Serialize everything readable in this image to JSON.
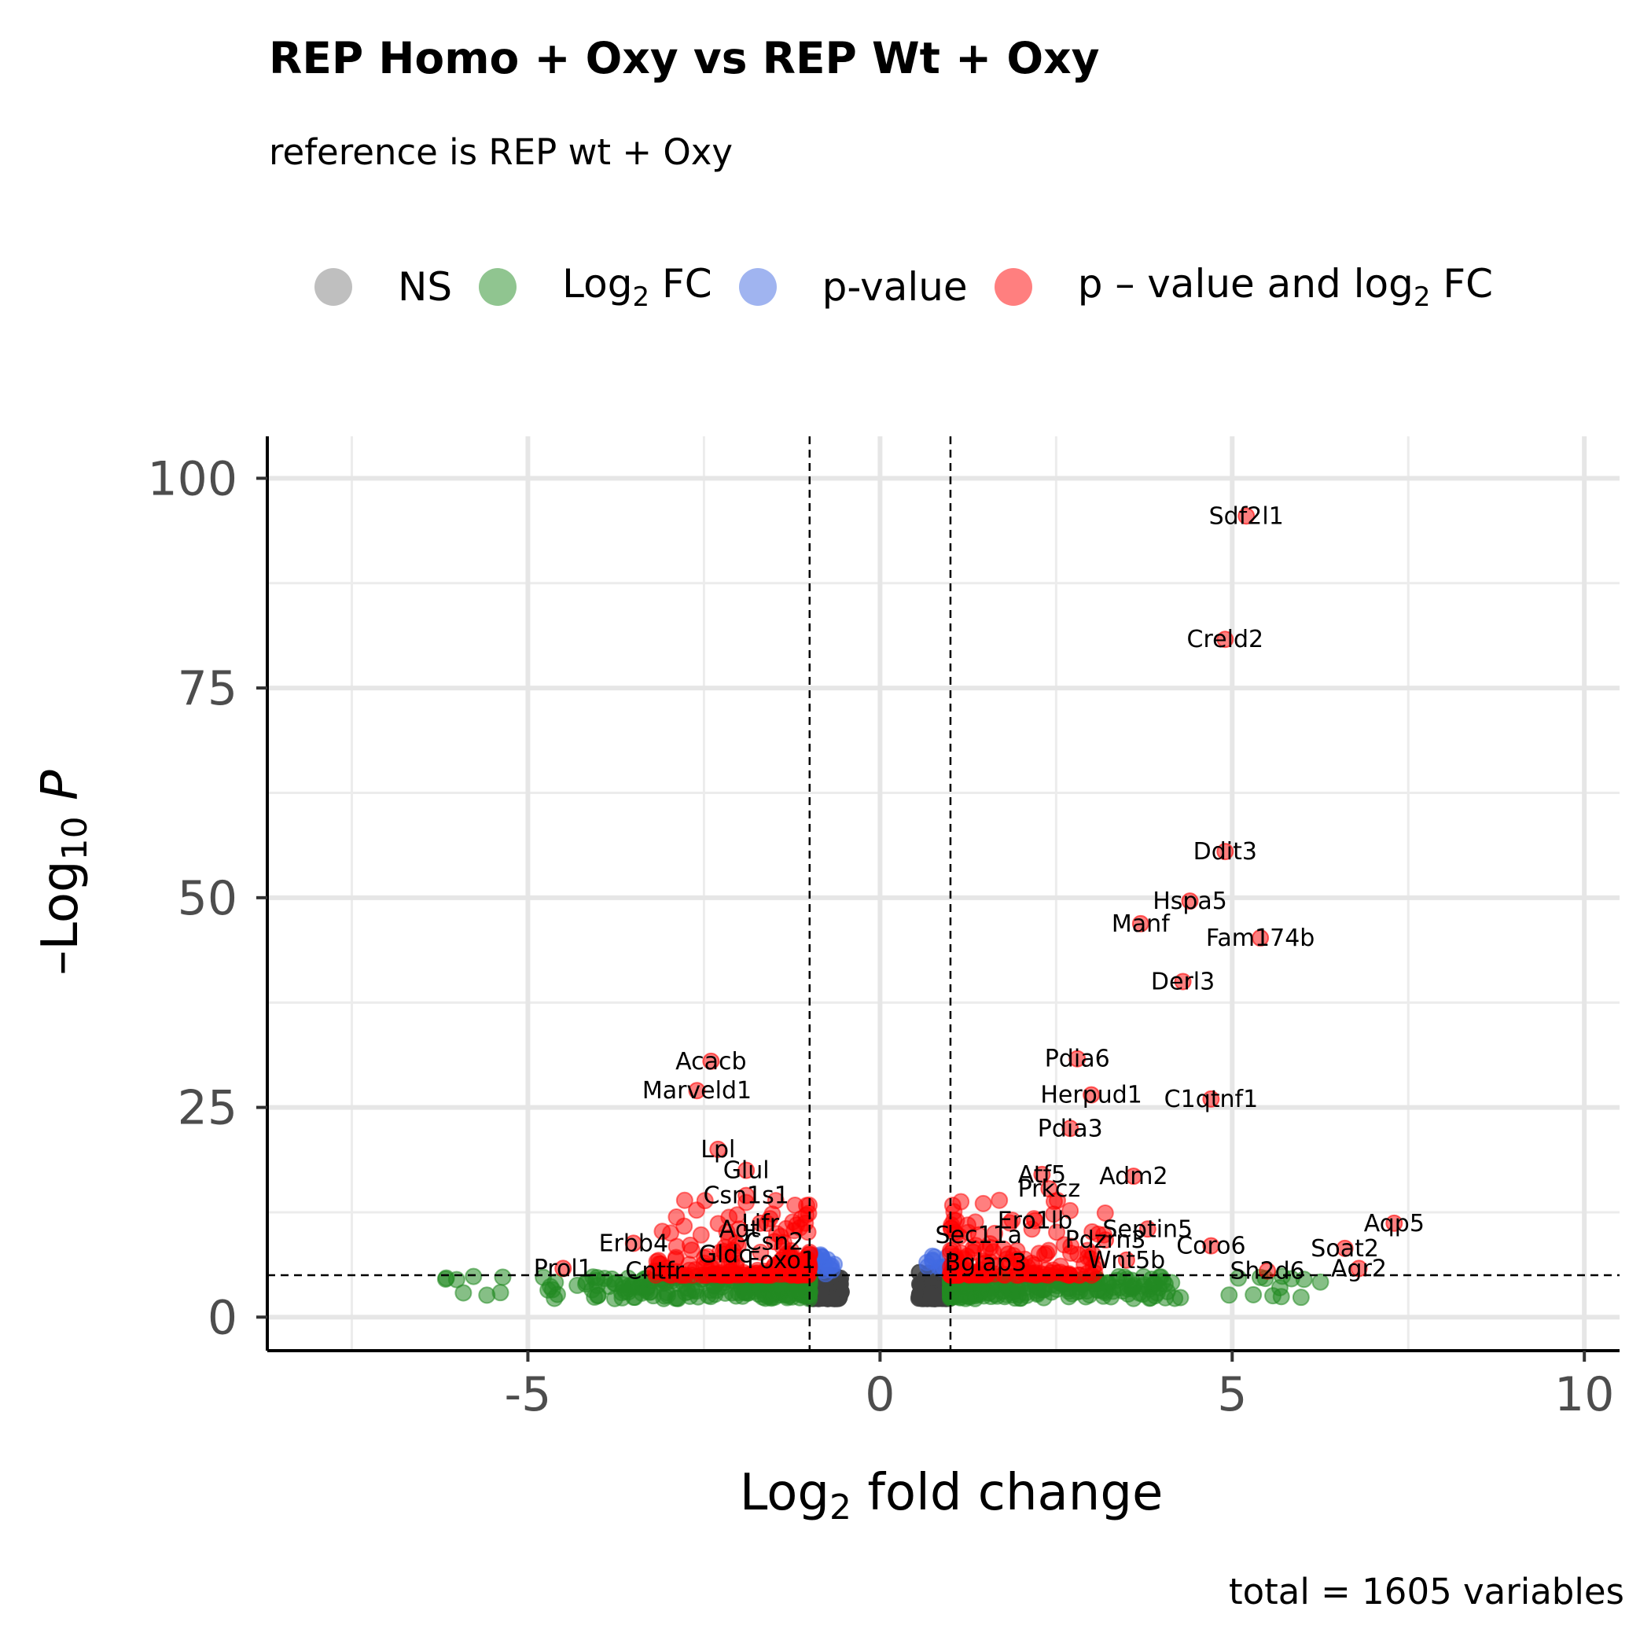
{
  "title": "REP Homo + Oxy vs REP Wt + Oxy",
  "subtitle": "reference is REP wt + Oxy",
  "caption": "total = 1605 variables",
  "legend": [
    {
      "label": "NS",
      "color": "#808080"
    },
    {
      "label": "Log",
      "sub": "2",
      "label_suffix": " FC",
      "color": "#228b22"
    },
    {
      "label": "p-value",
      "color": "#4169e1"
    },
    {
      "label": "p – value and log",
      "sub": "2",
      "label_suffix": " FC",
      "color": "#ff0000"
    }
  ],
  "chart_data": {
    "type": "scatter",
    "title": "REP Homo + Oxy vs REP Wt + Oxy",
    "subtitle": "reference is REP wt + Oxy",
    "xlabel": "Log2 fold change",
    "ylabel": "–Log10 P",
    "xlim": [
      -8.7,
      10.5
    ],
    "ylim": [
      -4,
      105
    ],
    "x_ticks": [
      -5,
      0,
      5,
      10
    ],
    "x_tick_labels": [
      "-5",
      "0",
      "5",
      "10"
    ],
    "y_ticks": [
      0,
      25,
      50,
      75,
      100
    ],
    "y_tick_labels": [
      "0",
      "25",
      "50",
      "75",
      "100"
    ],
    "grid": true,
    "legend_position": "top",
    "thresholds": {
      "log2fc": [
        -1,
        1
      ],
      "neg_log10_p": 5
    },
    "colors": {
      "NS": "#404040",
      "Log2 FC": "#228b22",
      "p-value": "#4169e1",
      "p-value and log2 FC": "#ff0000"
    },
    "labeled_points": [
      {
        "gene": "Sdf2l1",
        "x": 5.2,
        "y": 95.5
      },
      {
        "gene": "Creld2",
        "x": 4.9,
        "y": 80.8
      },
      {
        "gene": "Ddit3",
        "x": 4.9,
        "y": 55.5
      },
      {
        "gene": "Hspa5",
        "x": 4.4,
        "y": 49.6
      },
      {
        "gene": "Manf",
        "x": 3.7,
        "y": 46.9
      },
      {
        "gene": "Fam174b",
        "x": 5.4,
        "y": 45.2
      },
      {
        "gene": "Derl3",
        "x": 4.3,
        "y": 40.0
      },
      {
        "gene": "Pdia6",
        "x": 2.8,
        "y": 30.8
      },
      {
        "gene": "Herpud1",
        "x": 3.0,
        "y": 26.5
      },
      {
        "gene": "C1qtnf1",
        "x": 4.7,
        "y": 26.0
      },
      {
        "gene": "Pdia3",
        "x": 2.7,
        "y": 22.5
      },
      {
        "gene": "Atf5",
        "x": 2.3,
        "y": 17.0
      },
      {
        "gene": "Adm2",
        "x": 3.6,
        "y": 16.8
      },
      {
        "gene": "Prkcz",
        "x": 2.4,
        "y": 15.3
      },
      {
        "gene": "Ero1lb",
        "x": 2.2,
        "y": 11.5
      },
      {
        "gene": "Septin5",
        "x": 3.8,
        "y": 10.5
      },
      {
        "gene": "Sec11a",
        "x": 1.4,
        "y": 9.8
      },
      {
        "gene": "Pdzrn3",
        "x": 3.2,
        "y": 9.2
      },
      {
        "gene": "Bglap3",
        "x": 1.5,
        "y": 6.5
      },
      {
        "gene": "Wnt5b",
        "x": 3.5,
        "y": 6.8
      },
      {
        "gene": "Coro6",
        "x": 4.7,
        "y": 8.5
      },
      {
        "gene": "Sh2d6",
        "x": 5.5,
        "y": 5.5
      },
      {
        "gene": "Aqp5",
        "x": 7.3,
        "y": 11.2
      },
      {
        "gene": "Soat2",
        "x": 6.6,
        "y": 8.2
      },
      {
        "gene": "Agr2",
        "x": 6.8,
        "y": 5.8
      },
      {
        "gene": "Acacb",
        "x": -2.4,
        "y": 30.5
      },
      {
        "gene": "Marveld1",
        "x": -2.6,
        "y": 27.0
      },
      {
        "gene": "Lpl",
        "x": -2.3,
        "y": 20.0
      },
      {
        "gene": "Glul",
        "x": -1.9,
        "y": 17.5
      },
      {
        "gene": "Csn1s1",
        "x": -1.9,
        "y": 14.5
      },
      {
        "gene": "Lifr",
        "x": -1.7,
        "y": 11.2
      },
      {
        "gene": "Agt",
        "x": -2.0,
        "y": 10.5
      },
      {
        "gene": "Csn2",
        "x": -1.5,
        "y": 9.0
      },
      {
        "gene": "Erbb4",
        "x": -3.5,
        "y": 8.8
      },
      {
        "gene": "Gldc",
        "x": -2.2,
        "y": 7.5
      },
      {
        "gene": "Foxo1",
        "x": -1.4,
        "y": 6.8
      },
      {
        "gene": "Prol1",
        "x": -4.5,
        "y": 5.8
      },
      {
        "gene": "Cntfr",
        "x": -3.2,
        "y": 5.5
      }
    ]
  }
}
